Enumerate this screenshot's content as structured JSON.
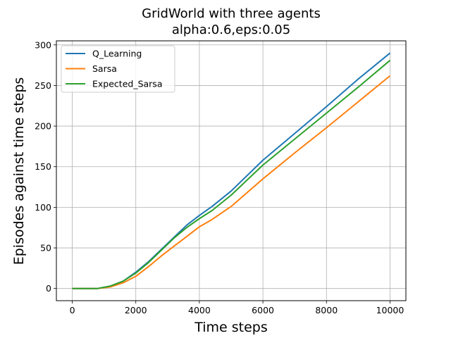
{
  "chart_data": {
    "type": "line",
    "title": "GridWorld with three agents",
    "subtitle": "alpha:0.6,eps:0.05",
    "xlabel": "Time steps",
    "ylabel": "Episodes against time steps",
    "xlim": [
      -500,
      10500
    ],
    "ylim": [
      -15,
      305
    ],
    "xticks": [
      0,
      2000,
      4000,
      6000,
      8000,
      10000
    ],
    "yticks": [
      0,
      50,
      100,
      150,
      200,
      250,
      300
    ],
    "grid": true,
    "legend_position": "upper left",
    "series": [
      {
        "name": "Q_Learning",
        "color": "#1f77b4",
        "x": [
          0,
          800,
          1200,
          1600,
          2000,
          2400,
          2800,
          3200,
          3600,
          4000,
          4400,
          5000,
          6000,
          7000,
          8000,
          9000,
          10000
        ],
        "y": [
          0,
          0,
          3,
          9,
          20,
          33,
          48,
          63,
          78,
          90,
          101,
          120,
          158,
          191,
          224,
          258,
          290
        ]
      },
      {
        "name": "Sarsa",
        "color": "#ff7f0e",
        "x": [
          0,
          800,
          1200,
          1600,
          2000,
          2400,
          2800,
          3200,
          3600,
          4000,
          4400,
          5000,
          6000,
          7000,
          8000,
          9000,
          10000
        ],
        "y": [
          0,
          0,
          2,
          7,
          15,
          27,
          40,
          52,
          64,
          76,
          85,
          101,
          135,
          167,
          198,
          230,
          262
        ]
      },
      {
        "name": "Expected_Sarsa",
        "color": "#2ca02c",
        "x": [
          0,
          800,
          1200,
          1600,
          2000,
          2400,
          2800,
          3200,
          3600,
          4000,
          4400,
          5000,
          6000,
          7000,
          8000,
          9000,
          10000
        ],
        "y": [
          0,
          0,
          3,
          9,
          19,
          32,
          47,
          62,
          75,
          86,
          96,
          115,
          152,
          184,
          216,
          248,
          281
        ]
      }
    ]
  }
}
